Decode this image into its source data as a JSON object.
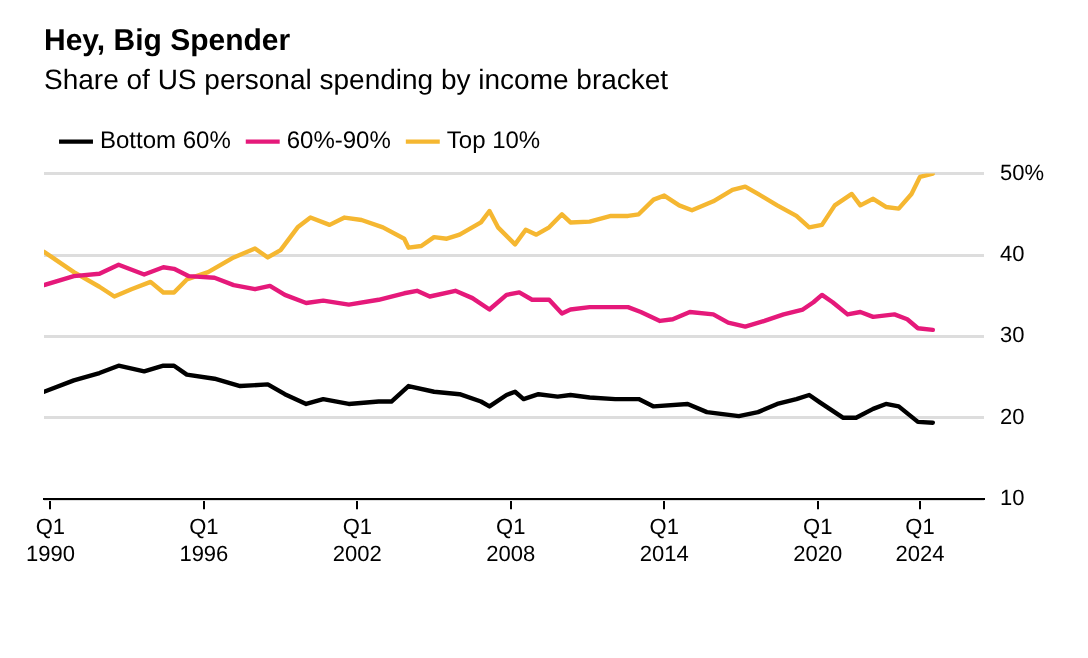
{
  "chart_data": {
    "type": "line",
    "title": "Hey, Big Spender",
    "subtitle": "Share of US personal spending by income bracket",
    "legend": "top left",
    "grid": "y",
    "marker": "none",
    "line_style": "solid",
    "xlim": [
      "1989-10",
      "2026-07"
    ],
    "xticks": [
      {
        "value": "1990-01",
        "label": "Q1 1990"
      },
      {
        "value": "1996-01",
        "label": "Q1 1996"
      },
      {
        "value": "2002-01",
        "label": "Q1 2002"
      },
      {
        "value": "2008-01",
        "label": "Q1 2008"
      },
      {
        "value": "2014-01",
        "label": "Q1 2014"
      },
      {
        "value": "2020-01",
        "label": "Q1 2020"
      },
      {
        "value": "2024-01",
        "label": "Q1 2024"
      }
    ],
    "ylim": [
      10,
      50
    ],
    "yticks": [
      10,
      20,
      30,
      40,
      {
        "value": 50,
        "label": "50%"
      }
    ],
    "series": [
      {
        "name": "Bottom 60%",
        "color": "#000000",
        "x": [
          "1989-10",
          "1990-12",
          "1991-12",
          "1992-09",
          "1993-09",
          "1994-06",
          "1994-11",
          "1995-05",
          "1996-06",
          "1997-06",
          "1998-07",
          "1999-03",
          "2000-01",
          "2000-09",
          "2001-09",
          "2002-11",
          "2003-05",
          "2004-01",
          "2005-01",
          "2006-01",
          "2006-11",
          "2007-03",
          "2007-11",
          "2008-03",
          "2008-07",
          "2009-02",
          "2009-11",
          "2010-05",
          "2011-02",
          "2012-02",
          "2013-01",
          "2013-08",
          "2014-12",
          "2015-09",
          "2016-12",
          "2017-09",
          "2018-06",
          "2019-03",
          "2019-09",
          "2020-02",
          "2021-01",
          "2021-07",
          "2022-03",
          "2022-09",
          "2023-03",
          "2023-12",
          "2024-07"
        ],
        "values": [
          23.2,
          24.6,
          25.5,
          26.4,
          25.7,
          26.4,
          26.4,
          25.3,
          24.8,
          23.9,
          24.1,
          22.9,
          21.7,
          22.3,
          21.7,
          22.0,
          22.0,
          23.9,
          23.2,
          22.9,
          22.0,
          21.4,
          22.8,
          23.2,
          22.3,
          22.9,
          22.6,
          22.8,
          22.5,
          22.3,
          22.3,
          21.4,
          21.7,
          20.7,
          20.2,
          20.7,
          21.7,
          22.3,
          22.8,
          21.9,
          20.0,
          20.0,
          21.1,
          21.7,
          21.4,
          19.5,
          19.4
        ]
      },
      {
        "name": "60%-90%",
        "color": "#e5197a",
        "x": [
          "1989-10",
          "1990-12",
          "1991-12",
          "1992-09",
          "1993-09",
          "1994-06",
          "1994-11",
          "1995-06",
          "1996-06",
          "1997-03",
          "1998-01",
          "1998-08",
          "1999-03",
          "2000-01",
          "2000-09",
          "2001-09",
          "2002-11",
          "2003-11",
          "2004-05",
          "2004-11",
          "2005-11",
          "2006-07",
          "2007-03",
          "2007-11",
          "2008-05",
          "2008-11",
          "2009-07",
          "2010-01",
          "2010-05",
          "2011-02",
          "2011-12",
          "2012-08",
          "2013-02",
          "2013-11",
          "2014-05",
          "2015-01",
          "2015-12",
          "2016-07",
          "2017-03",
          "2017-12",
          "2018-09",
          "2019-06",
          "2019-11",
          "2020-03",
          "2020-08",
          "2021-03",
          "2021-09",
          "2022-03",
          "2023-01",
          "2023-07",
          "2023-12",
          "2024-07"
        ],
        "values": [
          36.3,
          37.4,
          37.7,
          38.8,
          37.6,
          38.5,
          38.3,
          37.4,
          37.2,
          36.3,
          35.8,
          36.2,
          35.1,
          34.1,
          34.4,
          33.9,
          34.5,
          35.3,
          35.6,
          34.9,
          35.6,
          34.7,
          33.3,
          35.1,
          35.4,
          34.5,
          34.5,
          32.8,
          33.3,
          33.6,
          33.6,
          33.6,
          33.0,
          31.9,
          32.1,
          33.0,
          32.7,
          31.7,
          31.2,
          31.9,
          32.7,
          33.3,
          34.2,
          35.1,
          34.2,
          32.7,
          33.0,
          32.4,
          32.7,
          32.1,
          31.0,
          30.8
        ]
      },
      {
        "name": "Top 10%",
        "color": "#f5b731",
        "x": [
          "1989-10",
          "1990-12",
          "1991-12",
          "1992-07",
          "1993-03",
          "1993-12",
          "1994-06",
          "1994-11",
          "1995-05",
          "1996-03",
          "1997-03",
          "1998-01",
          "1998-07",
          "1999-01",
          "1999-09",
          "2000-03",
          "2000-12",
          "2001-07",
          "2002-03",
          "2003-01",
          "2003-11",
          "2004-01",
          "2004-07",
          "2005-01",
          "2005-07",
          "2006-01",
          "2006-11",
          "2007-03",
          "2007-07",
          "2008-03",
          "2008-08",
          "2009-01",
          "2009-07",
          "2010-01",
          "2010-05",
          "2011-02",
          "2011-12",
          "2012-08",
          "2013-01",
          "2013-08",
          "2014-01",
          "2014-08",
          "2015-02",
          "2015-12",
          "2016-09",
          "2017-03",
          "2017-09",
          "2018-06",
          "2019-03",
          "2019-09",
          "2020-03",
          "2020-09",
          "2021-05",
          "2021-09",
          "2022-03",
          "2022-09",
          "2023-03",
          "2023-09",
          "2024-01",
          "2024-07"
        ],
        "values": [
          40.4,
          37.9,
          36.1,
          34.9,
          35.8,
          36.7,
          35.4,
          35.4,
          37.0,
          37.9,
          39.7,
          40.8,
          39.7,
          40.6,
          43.4,
          44.6,
          43.7,
          44.6,
          44.3,
          43.4,
          42.0,
          40.9,
          41.1,
          42.2,
          42.0,
          42.5,
          44.0,
          45.4,
          43.4,
          41.3,
          43.1,
          42.5,
          43.4,
          45.0,
          44.0,
          44.1,
          44.8,
          44.8,
          45.0,
          46.8,
          47.3,
          46.1,
          45.5,
          46.6,
          48.0,
          48.4,
          47.5,
          46.1,
          44.8,
          43.4,
          43.7,
          46.1,
          47.5,
          46.1,
          46.9,
          45.9,
          45.7,
          47.5,
          49.6,
          50.0
        ]
      }
    ]
  }
}
